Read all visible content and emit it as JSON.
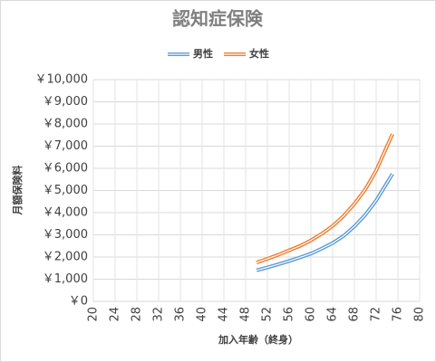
{
  "chart_data": {
    "type": "line",
    "title": "認知症保険",
    "x_label": "加入年齢（終身）",
    "y_label": "月額保険料",
    "x": [
      50,
      52,
      54,
      56,
      58,
      60,
      62,
      64,
      66,
      68,
      70,
      72,
      74,
      75
    ],
    "series": [
      {
        "name": "男性",
        "color": "#5b9bd5",
        "values": [
          1400,
          1530,
          1670,
          1820,
          1980,
          2150,
          2380,
          2630,
          2950,
          3380,
          3900,
          4550,
          5350,
          5750
        ]
      },
      {
        "name": "女性",
        "color": "#ed7d31",
        "values": [
          1750,
          1920,
          2100,
          2300,
          2500,
          2750,
          3050,
          3400,
          3850,
          4400,
          5050,
          5900,
          7000,
          7550
        ]
      }
    ],
    "xlim": [
      20,
      80
    ],
    "xticks": [
      20,
      24,
      28,
      32,
      36,
      40,
      44,
      48,
      52,
      56,
      60,
      64,
      68,
      72,
      76,
      80
    ],
    "ylim": [
      0,
      10000
    ],
    "yticks": [
      {
        "value": 0,
        "label": "￥0"
      },
      {
        "value": 1000,
        "label": "￥1,000"
      },
      {
        "value": 2000,
        "label": "￥2,000"
      },
      {
        "value": 3000,
        "label": "￥3,000"
      },
      {
        "value": 4000,
        "label": "￥4,000"
      },
      {
        "value": 5000,
        "label": "￥5,000"
      },
      {
        "value": 6000,
        "label": "￥6,000"
      },
      {
        "value": 7000,
        "label": "￥7,000"
      },
      {
        "value": 8000,
        "label": "￥8,000"
      },
      {
        "value": 9000,
        "label": "￥9,000"
      },
      {
        "value": 10000,
        "label": "￥10,000"
      }
    ],
    "grid": true,
    "legend": "top"
  }
}
